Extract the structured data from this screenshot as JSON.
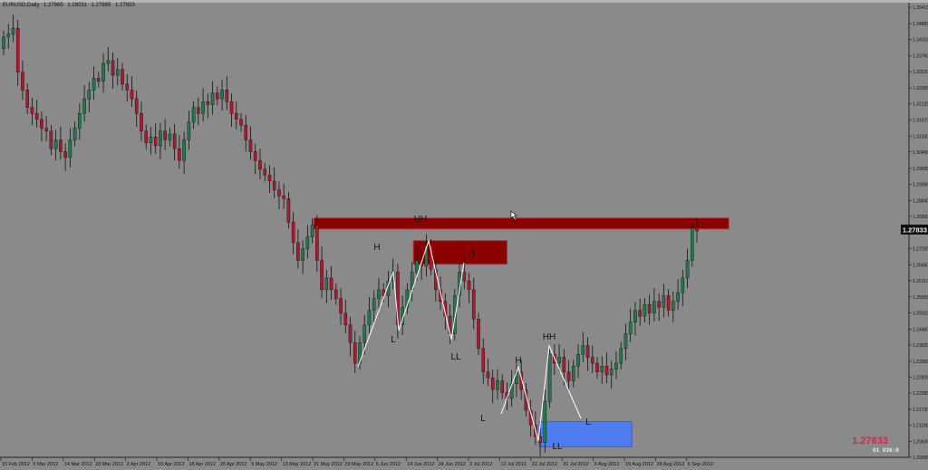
{
  "header": {
    "symbol": "EURUSD,Daily",
    "open": "1.27665",
    "high": "1.28031",
    "low": "1.27695",
    "close": "1.27833"
  },
  "colors": {
    "background": "#8a8a8a",
    "bull": "#1f7a4c",
    "bear": "#b3172c",
    "wick": "#111111",
    "resistance_zone": "#8b0000",
    "support_zone": "#4f7cf0",
    "zigzag": "#ffffff",
    "price_readout": "#e0204a"
  },
  "price_readout": {
    "value": "1.27833",
    "sub": "01 036:0"
  },
  "chart_data": {
    "type": "candlestick",
    "title": "EURUSD,Daily",
    "ylim": [
      1.20095,
      1.35415
    ],
    "grid": false,
    "y_ticks": [
      "1.35415",
      "1.34855",
      "1.34315",
      "1.33760",
      "1.33220",
      "1.32665",
      "1.32125",
      "1.31570",
      "1.31030",
      "1.30490",
      "1.29935",
      "1.29395",
      "1.28840",
      "1.28300",
      "1.27755",
      "1.27205",
      "1.26650",
      "1.26110",
      "1.25555",
      "1.25015",
      "1.24460",
      "1.23920",
      "1.23365",
      "1.22825",
      "1.22285",
      "1.21730",
      "1.21190",
      "1.20635",
      "1.20095"
    ],
    "current_price": "1.27833",
    "x_ticks": [
      "15 Feb 2012",
      "5 Mar 2012",
      "14 Mar 2012",
      "23 Mar 2012",
      "2 Apr 2012",
      "10 Apr 2012",
      "18 Apr 2012",
      "26 Apr 2012",
      "5 May 2012",
      "13 May 2012",
      "21 May 2012",
      "29 May 2012",
      "6 Jun 2012",
      "14 Jun 2012",
      "24 Jun 2012",
      "3 Jul 2012",
      "12 Jul 2012",
      "22 Jul 2012",
      "31 Jul 2012",
      "9 Aug 2012",
      "19 Aug 2012",
      "28 Aug 2012",
      "6 Sep 2012"
    ],
    "closes": [
      1.344,
      1.345,
      1.347,
      1.332,
      1.326,
      1.32,
      1.318,
      1.316,
      1.313,
      1.312,
      1.306,
      1.309,
      1.305,
      1.303,
      1.309,
      1.313,
      1.318,
      1.323,
      1.326,
      1.33,
      1.329,
      1.335,
      1.336,
      1.331,
      1.333,
      1.328,
      1.326,
      1.323,
      1.318,
      1.312,
      1.308,
      1.31,
      1.307,
      1.312,
      1.309,
      1.311,
      1.306,
      1.302,
      1.309,
      1.315,
      1.32,
      1.318,
      1.322,
      1.321,
      1.325,
      1.323,
      1.326,
      1.322,
      1.318,
      1.316,
      1.314,
      1.309,
      1.305,
      1.302,
      1.299,
      1.297,
      1.295,
      1.292,
      1.29,
      1.289,
      1.281,
      1.274,
      1.268,
      1.272,
      1.276,
      1.28,
      1.268,
      1.258,
      1.262,
      1.258,
      1.255,
      1.25,
      1.246,
      1.24,
      1.233,
      1.24,
      1.246,
      1.251,
      1.255,
      1.258,
      1.256,
      1.261,
      1.264,
      1.246,
      1.252,
      1.258,
      1.264,
      1.268,
      1.266,
      1.273,
      1.265,
      1.258,
      1.254,
      1.249,
      1.243,
      1.256,
      1.264,
      1.261,
      1.258,
      1.248,
      1.238,
      1.23,
      1.228,
      1.224,
      1.227,
      1.223,
      1.221,
      1.226,
      1.23,
      1.224,
      1.217,
      1.212,
      1.208,
      1.206,
      1.22,
      1.236,
      1.233,
      1.235,
      1.23,
      1.227,
      1.232,
      1.236,
      1.239,
      1.235,
      1.233,
      1.23,
      1.232,
      1.229,
      1.231,
      1.233,
      1.238,
      1.243,
      1.247,
      1.251,
      1.249,
      1.253,
      1.25,
      1.254,
      1.252,
      1.256,
      1.251,
      1.254,
      1.257,
      1.262,
      1.268,
      1.279,
      1.278
    ],
    "zones": [
      {
        "label": "HH",
        "type": "resistance",
        "price_low": 1.2787,
        "price_high": 1.2824
      },
      {
        "label": "H",
        "type": "resistance",
        "price_low": 1.2667,
        "price_high": 1.2747
      },
      {
        "label": "LL",
        "type": "support",
        "price_low": 1.2045,
        "price_high": 1.2131
      }
    ],
    "annotations": [
      "H",
      "L",
      "HH",
      "H",
      "LL",
      "H",
      "HH",
      "L",
      "L",
      "LL"
    ]
  }
}
